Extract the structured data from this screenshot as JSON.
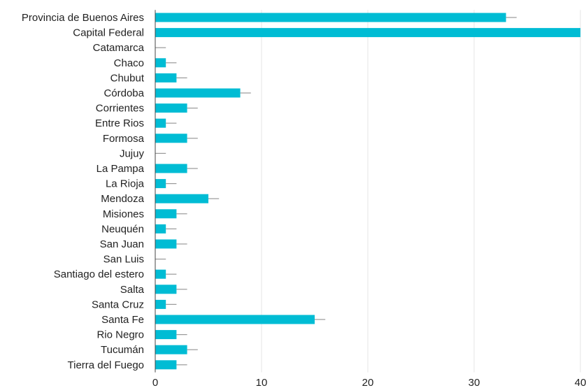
{
  "chart_data": {
    "type": "bar",
    "orientation": "horizontal",
    "title": "",
    "xlabel": "",
    "ylabel": "",
    "xlim": [
      0,
      40
    ],
    "x_ticks": [
      0,
      10,
      20,
      30,
      40
    ],
    "grid": true,
    "colors": {
      "bar": "#00bcd4",
      "error_bar": "#999999",
      "grid": "#e6e6e6",
      "axis": "#444444"
    },
    "categories": [
      "Provincia de Buenos Aires",
      "Capital Federal",
      "Catamarca",
      "Chaco",
      "Chubut",
      "Córdoba",
      "Corrientes",
      "Entre Rios",
      "Formosa",
      "Jujuy",
      "La Pampa",
      "La Rioja",
      "Mendoza",
      "Misiones",
      "Neuquén",
      "San Juan",
      "San Luis",
      "Santiago del estero",
      "Salta",
      "Santa Cruz",
      "Santa Fe",
      "Rio Negro",
      "Tucumán",
      "Tierra del Fuego"
    ],
    "values": [
      33,
      40,
      0,
      1,
      2,
      8,
      3,
      1,
      3,
      0,
      3,
      1,
      5,
      2,
      1,
      2,
      0,
      1,
      2,
      1,
      15,
      2,
      3,
      2
    ],
    "error_upper": [
      34,
      40,
      1,
      2,
      3,
      9,
      4,
      2,
      4,
      1,
      4,
      2,
      6,
      3,
      2,
      3,
      1,
      2,
      3,
      2,
      16,
      3,
      4,
      3
    ]
  }
}
